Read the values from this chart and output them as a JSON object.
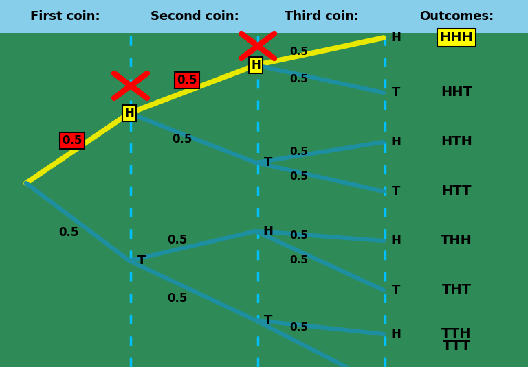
{
  "background_color": "#2e8b57",
  "header_color": "#87ceeb",
  "yellow_line_color": "#e8e800",
  "blue_line_color": "#1e8fa0",
  "yellow_box_color": "#ffff00",
  "red_box_color": "#ff0000",
  "header_labels": [
    "First coin:",
    "Second coin:",
    "Third coin:",
    "Outcomes:"
  ],
  "col_divider_color": "#00bfff",
  "outcomes": [
    "HHH",
    "HHT",
    "HTH",
    "HTT",
    "THH",
    "THT",
    "TTH",
    "TTT"
  ],
  "highlighted_outcomes": [
    "HHH"
  ]
}
